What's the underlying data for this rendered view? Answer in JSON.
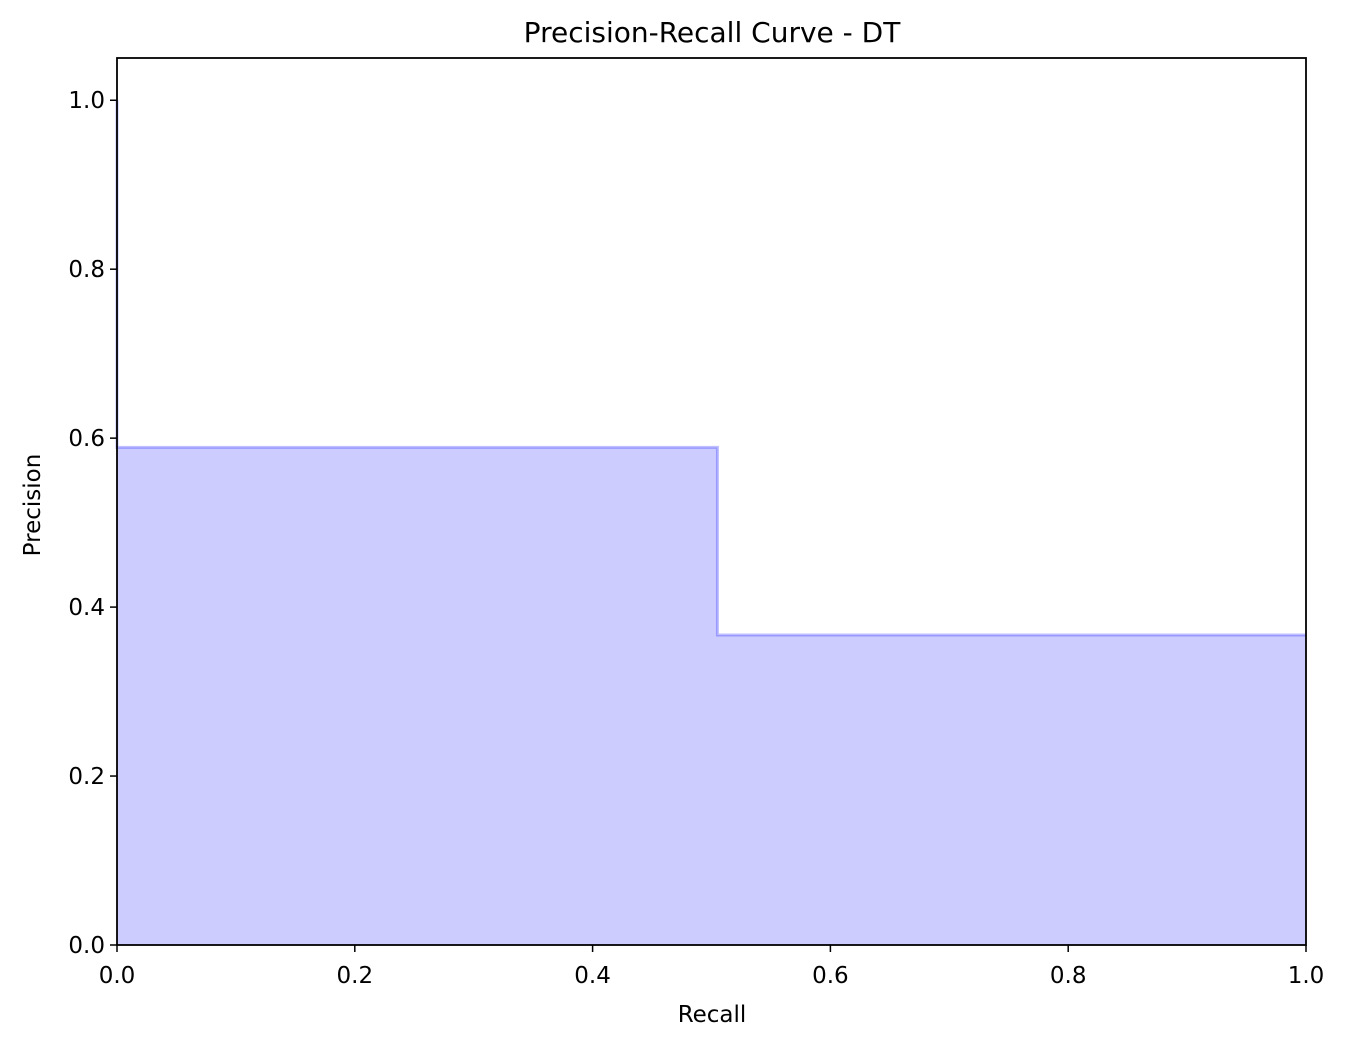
{
  "chart_data": {
    "type": "area",
    "title": "Precision-Recall Curve - DT",
    "xlabel": "Recall",
    "ylabel": "Precision",
    "xlim": [
      0.0,
      1.0
    ],
    "ylim": [
      0.0,
      1.05
    ],
    "xticks": [
      0.0,
      0.2,
      0.4,
      0.6,
      0.8,
      1.0
    ],
    "yticks": [
      0.0,
      0.2,
      0.4,
      0.6,
      0.8,
      1.0
    ],
    "xtick_labels": [
      "0.0",
      "0.2",
      "0.4",
      "0.6",
      "0.8",
      "1.0"
    ],
    "ytick_labels": [
      "0.0",
      "0.2",
      "0.4",
      "0.6",
      "0.8",
      "1.0"
    ],
    "grid": false,
    "step": "post",
    "series": [
      {
        "recall": [
          0.0,
          0.0,
          0.505,
          1.0
        ],
        "precision": [
          1.0,
          0.589,
          0.367,
          0.367
        ]
      }
    ],
    "colors": {
      "line": "#0000ff",
      "fill": "#ccccff"
    }
  }
}
